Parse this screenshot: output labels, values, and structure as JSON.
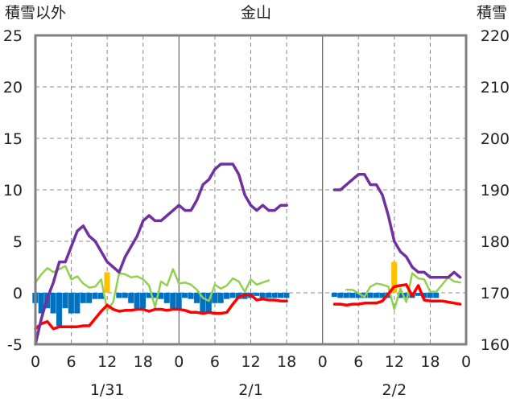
{
  "chart_data": {
    "type": "line",
    "title": "金山",
    "left_axis_label": "積雪以外",
    "right_axis_label": "積雪",
    "left_ylim": [
      -5,
      25
    ],
    "left_ticks": [
      -5,
      0,
      5,
      10,
      15,
      20,
      25
    ],
    "right_ylim": [
      160,
      220
    ],
    "right_ticks": [
      160,
      170,
      180,
      190,
      200,
      210,
      220
    ],
    "x_range": [
      0,
      72
    ],
    "x_tick_positions": [
      0,
      6,
      12,
      18,
      24,
      30,
      36,
      42,
      48,
      54,
      60,
      66,
      72
    ],
    "x_tick_labels": [
      "0",
      "6",
      "12",
      "18",
      "0",
      "6",
      "12",
      "18",
      "0",
      "6",
      "12",
      "18",
      "0"
    ],
    "day_labels": [
      {
        "x": 12,
        "label": "1/31"
      },
      {
        "x": 36,
        "label": "2/1"
      },
      {
        "x": 60,
        "label": "2/2"
      }
    ],
    "day_boundaries": [
      24,
      48
    ],
    "grid": true,
    "colors": {
      "snow_depth": "#7030a0",
      "humidity_like": "#92d050",
      "temperature": "#ff0000",
      "precip_neg": "#0070c0",
      "precip_pos": "#ffc000",
      "frame": "#808080"
    },
    "series": [
      {
        "key": "snow_depth",
        "axis": "right",
        "color": "#7030a0",
        "x": [
          0,
          1,
          2,
          3,
          4,
          5,
          6,
          7,
          8,
          9,
          10,
          11,
          12,
          13,
          14,
          15,
          16,
          17,
          18,
          19,
          20,
          21,
          22,
          23,
          24,
          25,
          26,
          27,
          28,
          29,
          30,
          31,
          32,
          33,
          34,
          35,
          36,
          37,
          38,
          39,
          40,
          41,
          42
        ],
        "values": [
          160,
          165,
          169,
          172,
          176,
          176,
          179,
          182,
          183,
          181,
          180,
          178,
          176,
          175,
          174,
          177,
          179,
          181,
          184,
          185,
          184,
          184,
          185,
          186,
          187,
          186,
          186,
          188,
          191,
          192,
          194,
          195,
          195,
          195,
          193,
          189,
          187,
          186,
          187,
          186,
          186,
          187,
          187
        ]
      },
      {
        "key": "snow_depth_day3",
        "axis": "right",
        "color": "#7030a0",
        "x": [
          50,
          51,
          52,
          53,
          54,
          55,
          56,
          57,
          58,
          59,
          60,
          61,
          62,
          63,
          64,
          65,
          66,
          67,
          68,
          69,
          70,
          71
        ],
        "values": [
          190,
          190,
          191,
          192,
          193,
          193,
          191,
          191,
          189,
          185,
          180,
          178,
          177,
          175,
          174,
          174,
          173,
          173,
          173,
          173,
          174,
          173
        ]
      },
      {
        "key": "humidity_like",
        "axis": "left",
        "color": "#92d050",
        "x": [
          0,
          1,
          2,
          3,
          4,
          5,
          6,
          7,
          8,
          9,
          10,
          11,
          12,
          13,
          14,
          15,
          16,
          17,
          18,
          19,
          20,
          21,
          22,
          23,
          24,
          25,
          26,
          27,
          28,
          29,
          30,
          31,
          32,
          33,
          34,
          35,
          36,
          37,
          38,
          39
        ],
        "values": [
          1.0,
          1.8,
          2.4,
          2.0,
          2.3,
          2.6,
          1.3,
          1.6,
          0.9,
          0.5,
          0.6,
          1.3,
          -1.7,
          -0.9,
          1.9,
          1.8,
          1.5,
          1.6,
          1.3,
          0.7,
          -1.4,
          1.1,
          0.7,
          2.3,
          0.9,
          1.0,
          0.8,
          0.3,
          -0.5,
          -0.8,
          0.8,
          0.4,
          0.7,
          1.4,
          1.1,
          0.1,
          1.3,
          0.8,
          1.0,
          1.2
        ]
      },
      {
        "key": "humidity_like_day3",
        "axis": "left",
        "color": "#92d050",
        "x": [
          52,
          53,
          55,
          56,
          57,
          58,
          59,
          60,
          61,
          62,
          63,
          64,
          65,
          66,
          67,
          68,
          69,
          70,
          71
        ],
        "values": [
          0.3,
          0.3,
          -0.4,
          0.6,
          0.9,
          0.8,
          0.6,
          -1.6,
          0.4,
          -0.9,
          1.9,
          1.4,
          1.3,
          0.1,
          0.1,
          0.8,
          1.5,
          1.1,
          1.0
        ]
      },
      {
        "key": "temperature",
        "axis": "left",
        "color": "#ff0000",
        "x": [
          0,
          1,
          2,
          3,
          4,
          5,
          6,
          7,
          8,
          9,
          10,
          11,
          12,
          13,
          14,
          15,
          16,
          17,
          18,
          19,
          20,
          21,
          22,
          23,
          24,
          25,
          26,
          27,
          28,
          29,
          30,
          31,
          32,
          33,
          34,
          35,
          36,
          37,
          38,
          39,
          40,
          41,
          42
        ],
        "values": [
          -3.5,
          -3.0,
          -2.8,
          -3.5,
          -3.3,
          -3.3,
          -3.3,
          -3.3,
          -3.2,
          -3.2,
          -2.5,
          -1.8,
          -1.2,
          -1.6,
          -1.8,
          -1.7,
          -1.7,
          -1.6,
          -1.6,
          -1.8,
          -1.6,
          -1.6,
          -1.7,
          -1.6,
          -1.6,
          -1.7,
          -1.9,
          -1.9,
          -2.0,
          -1.9,
          -2.0,
          -2.0,
          -1.9,
          -1.1,
          -0.4,
          -0.2,
          -0.2,
          -0.7,
          -0.6,
          -0.7,
          -0.7,
          -0.8,
          -0.8
        ]
      },
      {
        "key": "temperature_day3",
        "axis": "left",
        "color": "#ff0000",
        "x": [
          50,
          51,
          52,
          53,
          54,
          55,
          56,
          57,
          58,
          59,
          60,
          61,
          62,
          63,
          64,
          65,
          66,
          67,
          68,
          69,
          70,
          71
        ],
        "values": [
          -1.1,
          -1.1,
          -1.2,
          -1.1,
          -1.1,
          -1.0,
          -1.0,
          -1.0,
          -0.8,
          -0.1,
          0.6,
          0.7,
          0.8,
          -0.3,
          0.7,
          -0.7,
          -0.8,
          -0.8,
          -0.8,
          -0.9,
          -1.0,
          -1.1
        ]
      }
    ],
    "bars": {
      "axis": "left",
      "x": [
        0,
        1,
        2,
        3,
        4,
        5,
        6,
        7,
        8,
        9,
        10,
        11,
        12,
        14,
        15,
        16,
        17,
        18,
        19,
        20,
        21,
        22,
        23,
        24,
        25,
        26,
        27,
        28,
        29,
        30,
        31,
        32,
        33,
        34,
        35,
        36,
        37,
        38,
        39,
        40,
        41,
        42,
        50,
        51,
        52,
        53,
        54,
        55,
        56,
        57,
        58,
        59,
        60,
        61,
        62,
        63,
        64,
        65,
        66,
        67
      ],
      "values": [
        -1.0,
        -2.0,
        -1.5,
        -2.0,
        -3.2,
        -1.5,
        -2.0,
        -2.0,
        -1.0,
        -1.0,
        -0.6,
        -0.6,
        2.0,
        -0.5,
        -0.5,
        -1.0,
        -1.5,
        -1.5,
        -0.5,
        -0.5,
        -0.6,
        -1.0,
        -1.5,
        -1.5,
        -0.5,
        -0.6,
        -1.0,
        -2.0,
        -2.0,
        -1.0,
        -1.0,
        -0.6,
        -0.5,
        -0.6,
        -0.6,
        -0.5,
        -0.3,
        -0.5,
        -0.5,
        -0.5,
        -0.5,
        -0.5,
        -0.4,
        -0.5,
        -0.5,
        -0.5,
        -0.5,
        -0.5,
        -0.5,
        -0.5,
        -0.5,
        -0.5,
        3.0,
        -0.5,
        -0.5,
        -0.5,
        -0.3,
        -0.5,
        -0.5,
        -0.5
      ]
    }
  }
}
